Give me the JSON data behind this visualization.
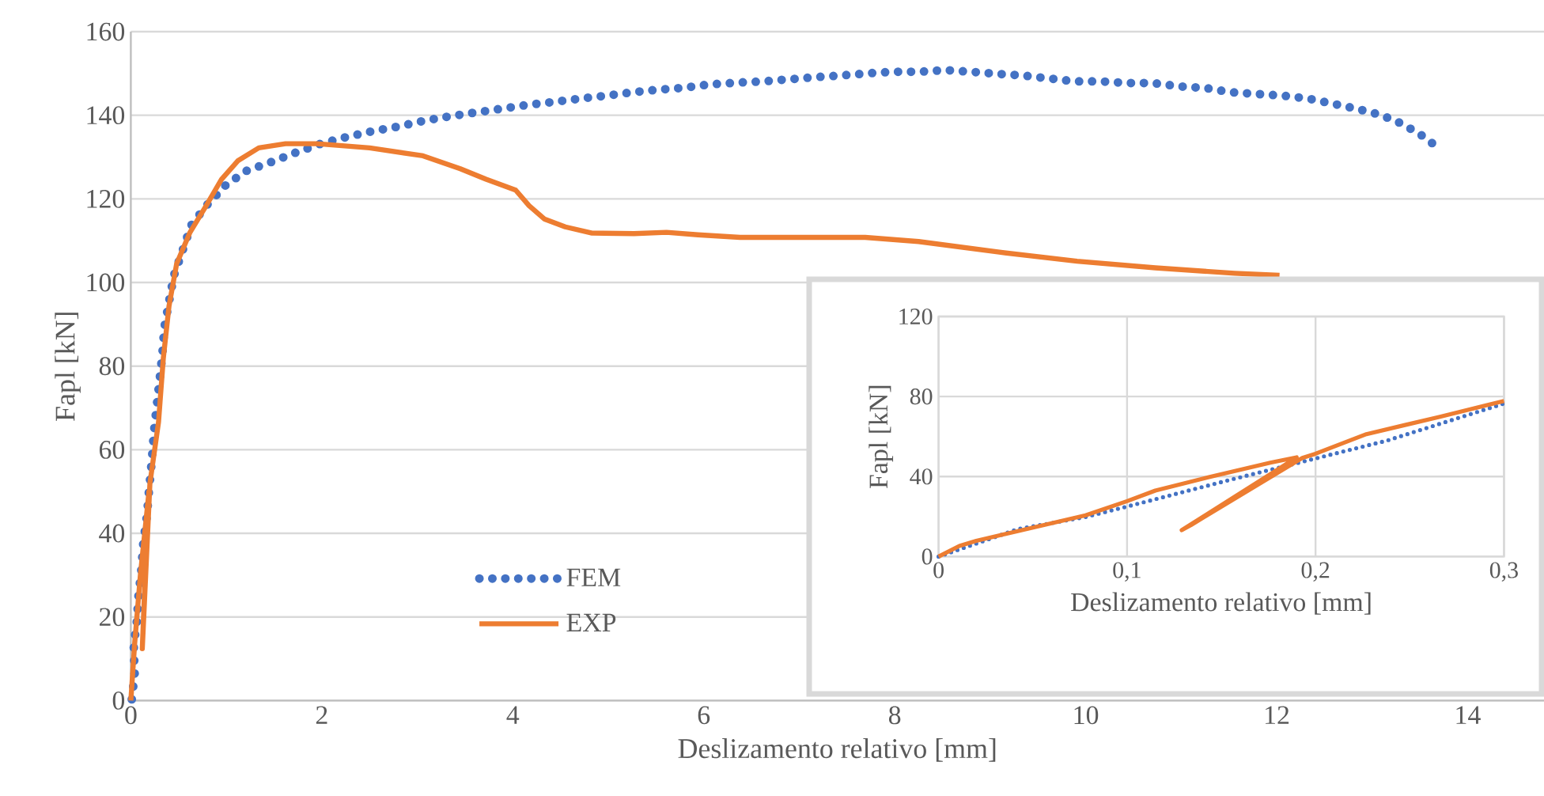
{
  "chart_data": [
    {
      "type": "line",
      "xlabel": "Deslizamento relativo [mm]",
      "ylabel": "Fapl [kN]",
      "xlim": [
        0,
        14.8
      ],
      "ylim": [
        0,
        160
      ],
      "xticks": [
        0,
        2,
        4,
        6,
        8,
        10,
        12,
        14
      ],
      "yticks": [
        0,
        20,
        40,
        60,
        80,
        100,
        120,
        140,
        160
      ],
      "grid": "y",
      "legend": "bottom left",
      "series": [
        {
          "name": "FEM",
          "color": "#4472c4",
          "line_style": "dotted",
          "x": [
            0.01,
            0.04,
            0.03,
            0.06,
            0.08,
            0.11,
            0.13,
            0.17,
            0.19,
            0.22,
            0.24,
            0.27,
            0.3,
            0.33,
            0.35,
            0.4,
            0.45,
            0.54,
            0.63,
            0.8,
            0.99,
            1.21,
            1.47,
            1.73,
            1.99,
            2.26,
            2.53,
            2.8,
            3.07,
            3.35,
            3.62,
            3.89,
            4.16,
            4.43,
            4.71,
            4.98,
            5.25,
            5.52,
            5.8,
            6.07,
            6.35,
            6.62,
            6.89,
            7.16,
            7.43,
            7.7,
            7.98,
            8.25,
            8.53,
            8.8,
            9.08,
            9.35,
            9.62,
            9.89,
            10.16,
            10.44,
            10.71,
            10.99,
            11.26,
            11.52,
            11.79,
            12.06,
            12.33,
            12.56,
            12.83,
            13.09,
            13.32,
            13.54,
            13.73
          ],
          "values": [
            0.3,
            6.4,
            13.4,
            18,
            25,
            31.3,
            37.6,
            44.5,
            50.2,
            57.5,
            63.8,
            70.2,
            76.5,
            82.8,
            89.1,
            95.4,
            101.6,
            107.5,
            113.6,
            118.6,
            123.2,
            126.7,
            128.8,
            131.1,
            133.2,
            134.8,
            136.2,
            137.3,
            138.7,
            139.8,
            140.7,
            141.6,
            142.5,
            143.2,
            144,
            144.7,
            145.5,
            146.1,
            146.6,
            147.4,
            147.8,
            148.1,
            148.6,
            149.1,
            149.5,
            150,
            150.4,
            150.4,
            150.8,
            150.4,
            149.9,
            149.5,
            148.8,
            148.1,
            148.1,
            147.7,
            147.7,
            146.9,
            146.5,
            145.5,
            145.1,
            144.7,
            144,
            142.9,
            141.6,
            140.1,
            137.9,
            134.9,
            131.5
          ]
        },
        {
          "name": "EXP",
          "color": "#ed7d31",
          "line_style": "solid",
          "x": [
            0,
            0.04,
            0.1,
            0.19,
            0.15,
            0.12,
            0.2,
            0.29,
            0.34,
            0.4,
            0.48,
            0.62,
            0.79,
            0.95,
            1.12,
            1.34,
            1.62,
            1.95,
            2.5,
            3.06,
            3.45,
            3.72,
            4.03,
            4.17,
            4.33,
            4.55,
            4.83,
            5.27,
            5.61,
            5.94,
            6.38,
            6.94,
            7.69,
            8.25,
            9.08,
            9.91,
            10.73,
            11.56,
            12.03
          ],
          "values": [
            0,
            13.6,
            30,
            50,
            30,
            12.4,
            52,
            66.6,
            81.8,
            94.4,
            104.5,
            112,
            118.4,
            124.7,
            129.1,
            132.2,
            133.2,
            133.2,
            132.2,
            130.3,
            127.2,
            124.7,
            122.1,
            118.4,
            115.2,
            113.3,
            111.8,
            111.7,
            112,
            111.4,
            110.8,
            110.8,
            110.8,
            109.8,
            107.3,
            105.1,
            103.5,
            102.2,
            101.7
          ]
        }
      ]
    },
    {
      "type": "line",
      "xlabel": "Deslizamento relativo [mm]",
      "ylabel": "Fapl [kN]",
      "xlim": [
        0,
        0.3
      ],
      "ylim": [
        0,
        120
      ],
      "xticks": [
        0,
        {
          "value": 0.1,
          "label": "0,1"
        },
        {
          "value": 0.2,
          "label": "0,2"
        },
        {
          "value": 0.3,
          "label": "0,3"
        }
      ],
      "yticks": [
        0,
        40,
        80,
        120
      ],
      "grid": true,
      "series": [
        {
          "color": "#4472c4",
          "line_style": "dotted",
          "x": [
            0,
            0.042,
            0.078,
            0.1,
            0.154,
            0.199,
            0.238,
            0.3
          ],
          "values": [
            0,
            13.7,
            19.8,
            25,
            38.2,
            48.8,
            58,
            76.5
          ]
        },
        {
          "color": "#ed7d31",
          "line_style": "solid",
          "x": [
            0,
            0.011,
            0.02,
            0.042,
            0.078,
            0.1,
            0.115,
            0.143,
            0.176,
            0.19,
            0.182,
            0.129,
            0.134,
            0.193,
            0.2,
            0.227,
            0.266,
            0.3
          ],
          "values": [
            0,
            5.3,
            7.9,
            12.7,
            20.6,
            27.7,
            33,
            39.6,
            46.9,
            49.6,
            44.8,
            13.2,
            15.8,
            49.3,
            51.4,
            61.2,
            69.9,
            77.8
          ]
        }
      ]
    }
  ]
}
